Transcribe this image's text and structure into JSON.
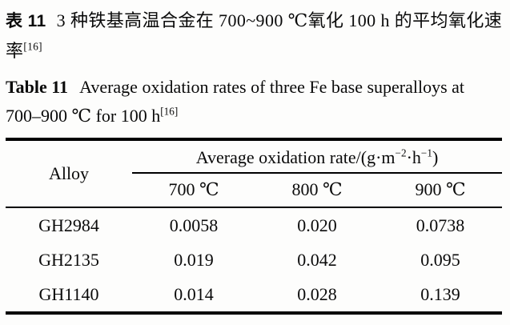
{
  "caption_zh": {
    "label": "表 11",
    "text": "3 种铁基高温合金在 700~900 ℃氧化 100 h 的平均氧化速率",
    "ref": "[16]"
  },
  "caption_en": {
    "label": "Table 11",
    "text": "Average oxidation rates of three Fe base superalloys at 700–900 ℃ for 100 h",
    "ref": "[16]"
  },
  "table": {
    "alloy_header": "Alloy",
    "unit_header": {
      "prefix": "Average oxidation rate/(g·m",
      "sup1": "−2",
      "mid": "·h",
      "sup2": "−1",
      "suffix": ")"
    },
    "temp_headers": [
      "700 ℃",
      "800 ℃",
      "900 ℃"
    ],
    "rows": [
      {
        "alloy": "GH2984",
        "v700": "0.0058",
        "v800": "0.020",
        "v900": "0.0738"
      },
      {
        "alloy": "GH2135",
        "v700": "0.019",
        "v800": "0.042",
        "v900": "0.095"
      },
      {
        "alloy": "GH1140",
        "v700": "0.014",
        "v800": "0.028",
        "v900": "0.139"
      }
    ]
  }
}
